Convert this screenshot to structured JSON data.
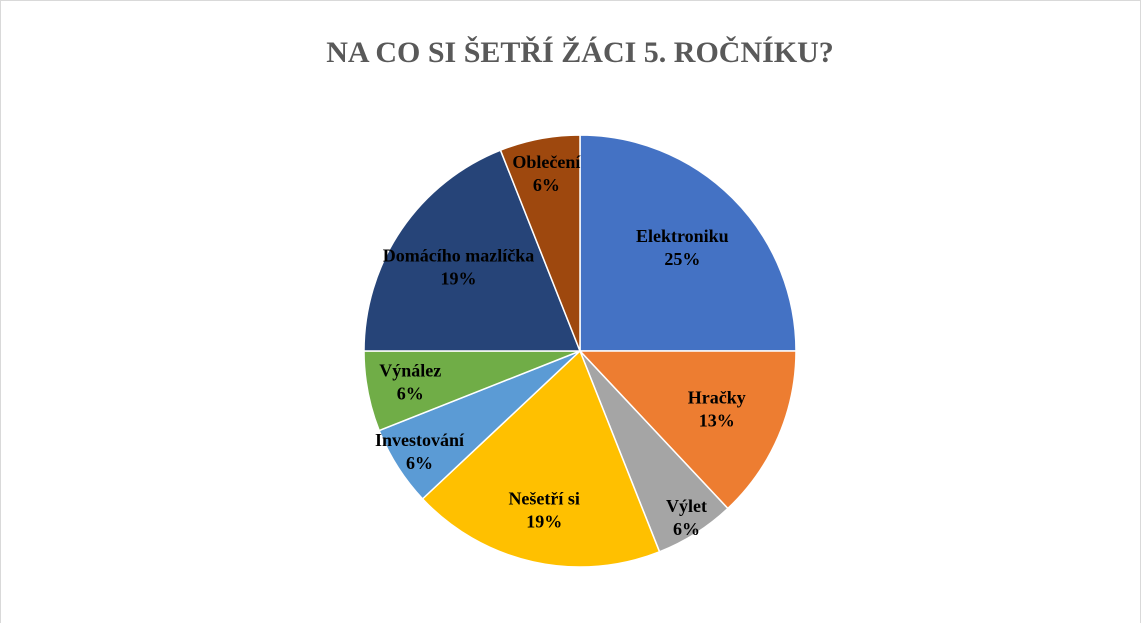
{
  "chart_data": {
    "type": "pie",
    "title": "NA CO SI ŠETŘÍ ŽÁCI 5. ROČNÍKU?",
    "categories": [
      "Elektroniku",
      "Hračky",
      "Výlet",
      "Nešetří si",
      "Investování",
      "Výnález",
      "Domácího mazlíčka",
      "Oblečení"
    ],
    "values": [
      25,
      13,
      6,
      19,
      6,
      6,
      19,
      6
    ],
    "value_labels": [
      "25%",
      "13%",
      "6%",
      "19%",
      "6%",
      "6%",
      "19%",
      "6%"
    ],
    "colors": [
      "#4472c4",
      "#ed7d31",
      "#a5a5a5",
      "#ffc000",
      "#5b9bd5",
      "#70ad47",
      "#264478",
      "#9e480e"
    ]
  }
}
